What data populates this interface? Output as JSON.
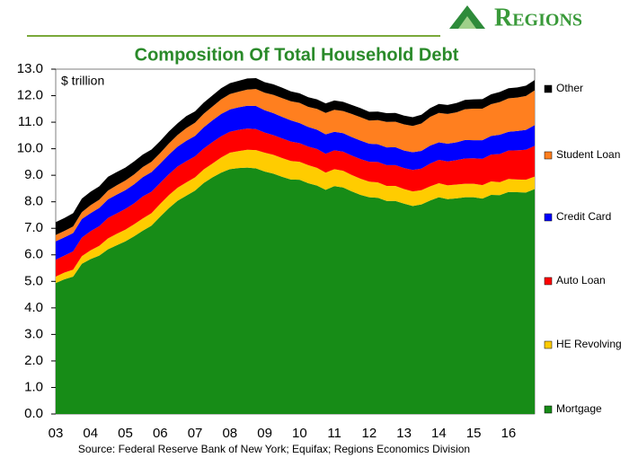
{
  "brand": "Regions",
  "chart_data": {
    "type": "stacked-area",
    "title": "Composition Of Total Household Debt",
    "unit_label": "$ trillion",
    "source": "Source: Federal Reserve Bank of New York; Equifax; Regions Economics Division",
    "categories": [
      "03",
      null,
      null,
      null,
      "04",
      null,
      null,
      null,
      "05",
      null,
      null,
      null,
      "06",
      null,
      null,
      null,
      "07",
      null,
      null,
      null,
      "08",
      null,
      null,
      null,
      "09",
      null,
      null,
      null,
      "10",
      null,
      null,
      null,
      "11",
      null,
      null,
      null,
      "12",
      null,
      null,
      null,
      "13",
      null,
      null,
      null,
      "14",
      null,
      null,
      null,
      "15",
      null,
      null,
      null,
      "16",
      null,
      null,
      null
    ],
    "series": [
      {
        "name": "Mortgage",
        "color": "#178c17",
        "values": [
          4.94,
          5.08,
          5.18,
          5.66,
          5.84,
          5.97,
          6.21,
          6.36,
          6.51,
          6.7,
          6.91,
          7.1,
          7.44,
          7.76,
          8.04,
          8.23,
          8.42,
          8.71,
          8.92,
          9.1,
          9.23,
          9.27,
          9.29,
          9.26,
          9.14,
          9.06,
          8.94,
          8.84,
          8.83,
          8.7,
          8.61,
          8.45,
          8.59,
          8.54,
          8.39,
          8.26,
          8.17,
          8.15,
          8.03,
          8.03,
          7.93,
          7.84,
          7.9,
          8.05,
          8.17,
          8.1,
          8.13,
          8.17,
          8.17,
          8.12,
          8.26,
          8.25,
          8.37,
          8.36,
          8.35,
          8.48
        ]
      },
      {
        "name": "HE Revolving",
        "color": "#ffcc00",
        "values": [
          0.24,
          0.25,
          0.26,
          0.29,
          0.33,
          0.37,
          0.41,
          0.43,
          0.44,
          0.45,
          0.46,
          0.47,
          0.48,
          0.49,
          0.49,
          0.5,
          0.5,
          0.51,
          0.52,
          0.57,
          0.62,
          0.64,
          0.67,
          0.69,
          0.71,
          0.71,
          0.71,
          0.7,
          0.68,
          0.68,
          0.67,
          0.65,
          0.64,
          0.63,
          0.62,
          0.61,
          0.59,
          0.58,
          0.57,
          0.57,
          0.55,
          0.55,
          0.54,
          0.53,
          0.53,
          0.52,
          0.52,
          0.51,
          0.51,
          0.51,
          0.51,
          0.49,
          0.49,
          0.48,
          0.48,
          0.47
        ]
      },
      {
        "name": "Auto Loan",
        "color": "#ff0000",
        "values": [
          0.64,
          0.64,
          0.69,
          0.7,
          0.72,
          0.74,
          0.77,
          0.77,
          0.78,
          0.79,
          0.83,
          0.81,
          0.79,
          0.79,
          0.8,
          0.8,
          0.79,
          0.79,
          0.81,
          0.8,
          0.79,
          0.8,
          0.8,
          0.79,
          0.76,
          0.74,
          0.74,
          0.73,
          0.7,
          0.7,
          0.71,
          0.71,
          0.71,
          0.72,
          0.73,
          0.74,
          0.75,
          0.77,
          0.78,
          0.78,
          0.79,
          0.81,
          0.81,
          0.86,
          0.88,
          0.9,
          0.92,
          0.95,
          0.96,
          0.99,
          1.01,
          1.06,
          1.07,
          1.1,
          1.13,
          1.16
        ]
      },
      {
        "name": "Credit Card",
        "color": "#0000ff",
        "values": [
          0.69,
          0.69,
          0.69,
          0.7,
          0.68,
          0.69,
          0.7,
          0.71,
          0.71,
          0.72,
          0.73,
          0.74,
          0.73,
          0.74,
          0.75,
          0.77,
          0.77,
          0.8,
          0.82,
          0.84,
          0.84,
          0.85,
          0.86,
          0.87,
          0.84,
          0.83,
          0.81,
          0.8,
          0.76,
          0.74,
          0.73,
          0.73,
          0.7,
          0.7,
          0.7,
          0.7,
          0.68,
          0.67,
          0.67,
          0.68,
          0.66,
          0.67,
          0.67,
          0.68,
          0.66,
          0.67,
          0.67,
          0.7,
          0.68,
          0.7,
          0.7,
          0.73,
          0.71,
          0.73,
          0.75,
          0.78
        ]
      },
      {
        "name": "Student Loan",
        "color": "#ff7f1f",
        "values": [
          0.24,
          0.24,
          0.25,
          0.26,
          0.3,
          0.31,
          0.33,
          0.35,
          0.36,
          0.37,
          0.38,
          0.39,
          0.4,
          0.42,
          0.44,
          0.48,
          0.5,
          0.51,
          0.52,
          0.55,
          0.58,
          0.59,
          0.61,
          0.64,
          0.66,
          0.69,
          0.71,
          0.72,
          0.76,
          0.76,
          0.78,
          0.81,
          0.83,
          0.83,
          0.87,
          0.88,
          0.87,
          0.91,
          0.96,
          0.96,
          0.99,
          0.99,
          1.03,
          1.08,
          1.11,
          1.12,
          1.13,
          1.16,
          1.19,
          1.19,
          1.2,
          1.23,
          1.26,
          1.26,
          1.28,
          1.31
        ]
      },
      {
        "name": "Other",
        "color": "#000000",
        "values": [
          0.48,
          0.49,
          0.5,
          0.51,
          0.51,
          0.5,
          0.52,
          0.5,
          0.49,
          0.49,
          0.47,
          0.46,
          0.45,
          0.45,
          0.44,
          0.45,
          0.43,
          0.42,
          0.42,
          0.42,
          0.41,
          0.41,
          0.42,
          0.41,
          0.4,
          0.4,
          0.39,
          0.37,
          0.36,
          0.36,
          0.36,
          0.36,
          0.35,
          0.35,
          0.34,
          0.34,
          0.33,
          0.32,
          0.33,
          0.33,
          0.33,
          0.33,
          0.33,
          0.33,
          0.34,
          0.34,
          0.35,
          0.35,
          0.35,
          0.36,
          0.37,
          0.38,
          0.38,
          0.38,
          0.39,
          0.39
        ]
      }
    ],
    "ylim": [
      0,
      13
    ],
    "yticks": [
      {
        "value": 0,
        "label": "0.0"
      },
      {
        "value": 1,
        "label": "1.0"
      },
      {
        "value": 2,
        "label": "2.0"
      },
      {
        "value": 3,
        "label": "3.0"
      },
      {
        "value": 4,
        "label": "4.0"
      },
      {
        "value": 5,
        "label": "5.0"
      },
      {
        "value": 6,
        "label": "6.0"
      },
      {
        "value": 7,
        "label": "7.0"
      },
      {
        "value": 8,
        "label": "8.0"
      },
      {
        "value": 9,
        "label": "9.0"
      },
      {
        "value": 10,
        "label": "10.0"
      },
      {
        "value": 11,
        "label": "11.0"
      },
      {
        "value": 12,
        "label": "12.0"
      },
      {
        "value": 13,
        "label": "13.0"
      }
    ]
  }
}
